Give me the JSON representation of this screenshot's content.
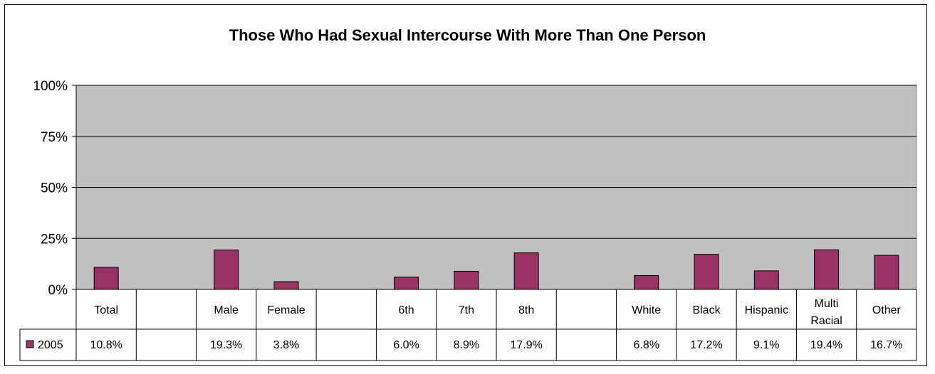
{
  "chart_data": {
    "type": "bar",
    "title": "Those Who Had Sexual Intercourse With More Than One Person",
    "ylim": [
      0,
      100
    ],
    "yticks": [
      "100%",
      "75%",
      "50%",
      "25%",
      "0%"
    ],
    "ytick_values": [
      100,
      75,
      50,
      25,
      0
    ],
    "categories": [
      "Total",
      "",
      "Male",
      "Female",
      "",
      "6th",
      "7th",
      "8th",
      "",
      "White",
      "Black",
      "Hispanic",
      "Multi Racial",
      "Other"
    ],
    "series": [
      {
        "name": "2005",
        "values": [
          10.8,
          null,
          19.3,
          3.8,
          null,
          6.0,
          8.9,
          17.9,
          null,
          6.8,
          17.2,
          9.1,
          19.4,
          16.7
        ],
        "labels": [
          "10.8%",
          "",
          "19.3%",
          "3.8%",
          "",
          "6.0%",
          "8.9%",
          "17.9%",
          "",
          "6.8%",
          "17.2%",
          "9.1%",
          "19.4%",
          "16.7%"
        ]
      }
    ],
    "grid": true,
    "legend": "data-table",
    "colors": {
      "bar": "#993366",
      "plot_bg": "#c0c0c0"
    }
  }
}
